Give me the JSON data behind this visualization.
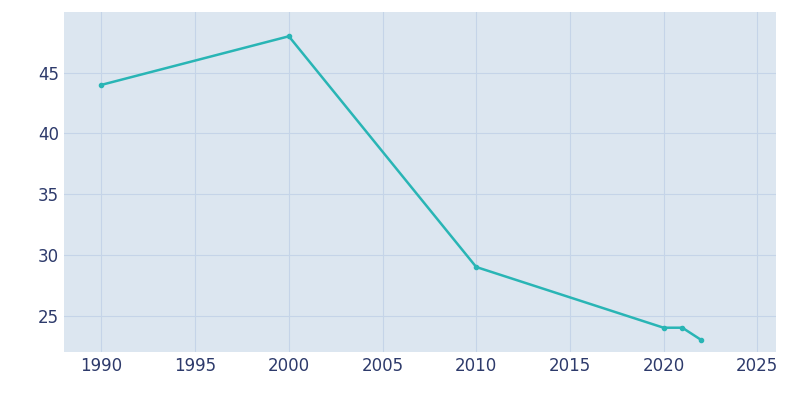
{
  "years": [
    1990,
    2000,
    2010,
    2020,
    2021,
    2022
  ],
  "population": [
    44,
    48,
    29,
    24,
    24,
    23
  ],
  "line_color": "#29b5b5",
  "marker": "o",
  "marker_size": 3,
  "plot_bg_color": "#dce6f0",
  "outer_bg_color": "#ffffff",
  "grid_color": "#c5d4e8",
  "xlabel": "",
  "ylabel": "",
  "xlim": [
    1988,
    2026
  ],
  "ylim": [
    22,
    50
  ],
  "xticks": [
    1990,
    1995,
    2000,
    2005,
    2010,
    2015,
    2020,
    2025
  ],
  "yticks": [
    25,
    30,
    35,
    40,
    45
  ],
  "tick_label_color": "#2d3a6b",
  "tick_fontsize": 12,
  "linewidth": 1.8
}
